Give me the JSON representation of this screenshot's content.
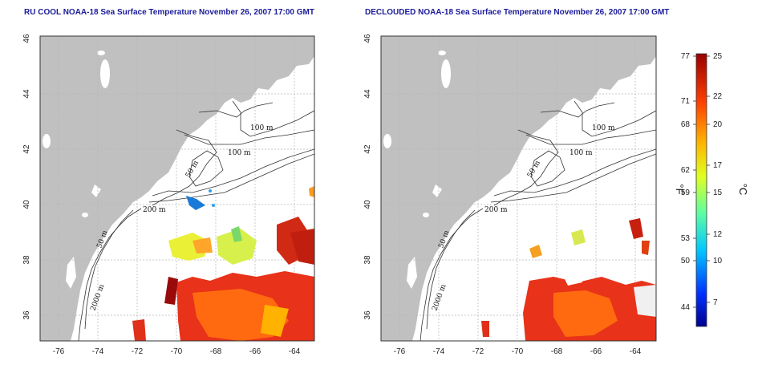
{
  "left_panel": {
    "title": "RU COOL NOAA-18 Sea Surface Temperature November 26, 2007 17:00 GMT"
  },
  "right_panel": {
    "title": "DECLOUDED NOAA-18 Sea Surface Temperature November 26, 2007 17:00 GMT"
  },
  "map_axes": {
    "lon_ticks": [
      "-76",
      "-74",
      "-72",
      "-70",
      "-68",
      "-66",
      "-64"
    ],
    "lat_ticks": [
      "46",
      "44",
      "42",
      "40",
      "38",
      "36"
    ]
  },
  "contour_labels": {
    "left": [
      "100 m",
      "100 m",
      "50 m",
      "200 m",
      "50 m",
      "2000 m"
    ],
    "right": [
      "100 m",
      "100 m",
      "50 m",
      "200 m",
      "50 m",
      "2000 m"
    ]
  },
  "colorbar": {
    "fahrenheit_unit": "°F",
    "celsius_unit": "°C",
    "fahrenheit_ticks": [
      "77",
      "71",
      "68",
      "62",
      "59",
      "53",
      "50",
      "44"
    ],
    "celsius_ticks": [
      "25",
      "22",
      "20",
      "17",
      "15",
      "12",
      "10",
      "7"
    ],
    "colors": [
      "#00008f",
      "#0050ff",
      "#00c8ff",
      "#60ff9f",
      "#e0ff20",
      "#ffb000",
      "#ff4000",
      "#9a0000"
    ]
  },
  "colors": {
    "land": "#c0c0c0",
    "ocean": "#ffffff",
    "title_text": "#1a1a9a",
    "sst_warm": "#e83010",
    "sst_hot": "#ff7000"
  }
}
